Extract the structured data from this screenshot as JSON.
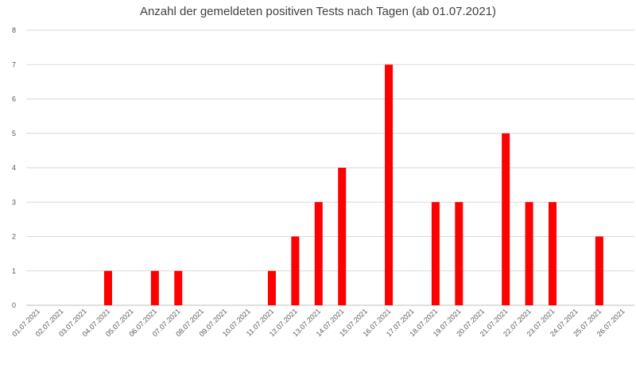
{
  "chart_data": {
    "type": "bar",
    "title": "Anzahl der gemeldeten positiven Tests nach Tagen (ab 01.07.2021)",
    "xlabel": "",
    "ylabel": "",
    "ylim": [
      0,
      8
    ],
    "yticks": [
      "0",
      "1",
      "2",
      "3",
      "4",
      "5",
      "6",
      "7",
      "8"
    ],
    "grid": true,
    "legend": "none",
    "bar_color": "#ff0000",
    "categories": [
      "01.07.2021",
      "02.07.2021",
      "03.07.2021",
      "04.07.2021",
      "05.07.2021",
      "06.07.2021",
      "07.07.2021",
      "08.07.2021",
      "09.07.2021",
      "10.07.2021",
      "11.07.2021",
      "12.07.2021",
      "13.07.2021",
      "14.07.2021",
      "15.07.2021",
      "16.07.2021",
      "17.07.2021",
      "18.07.2021",
      "19.07.2021",
      "20.07.2021",
      "21.07.2021",
      "22.07.2021",
      "23.07.2021",
      "24.07.2021",
      "25.07.2021",
      "26.07.2021"
    ],
    "values": [
      0,
      0,
      0,
      1,
      0,
      1,
      1,
      0,
      0,
      0,
      1,
      2,
      3,
      4,
      0,
      7,
      0,
      3,
      3,
      0,
      5,
      3,
      3,
      0,
      2,
      0
    ]
  }
}
